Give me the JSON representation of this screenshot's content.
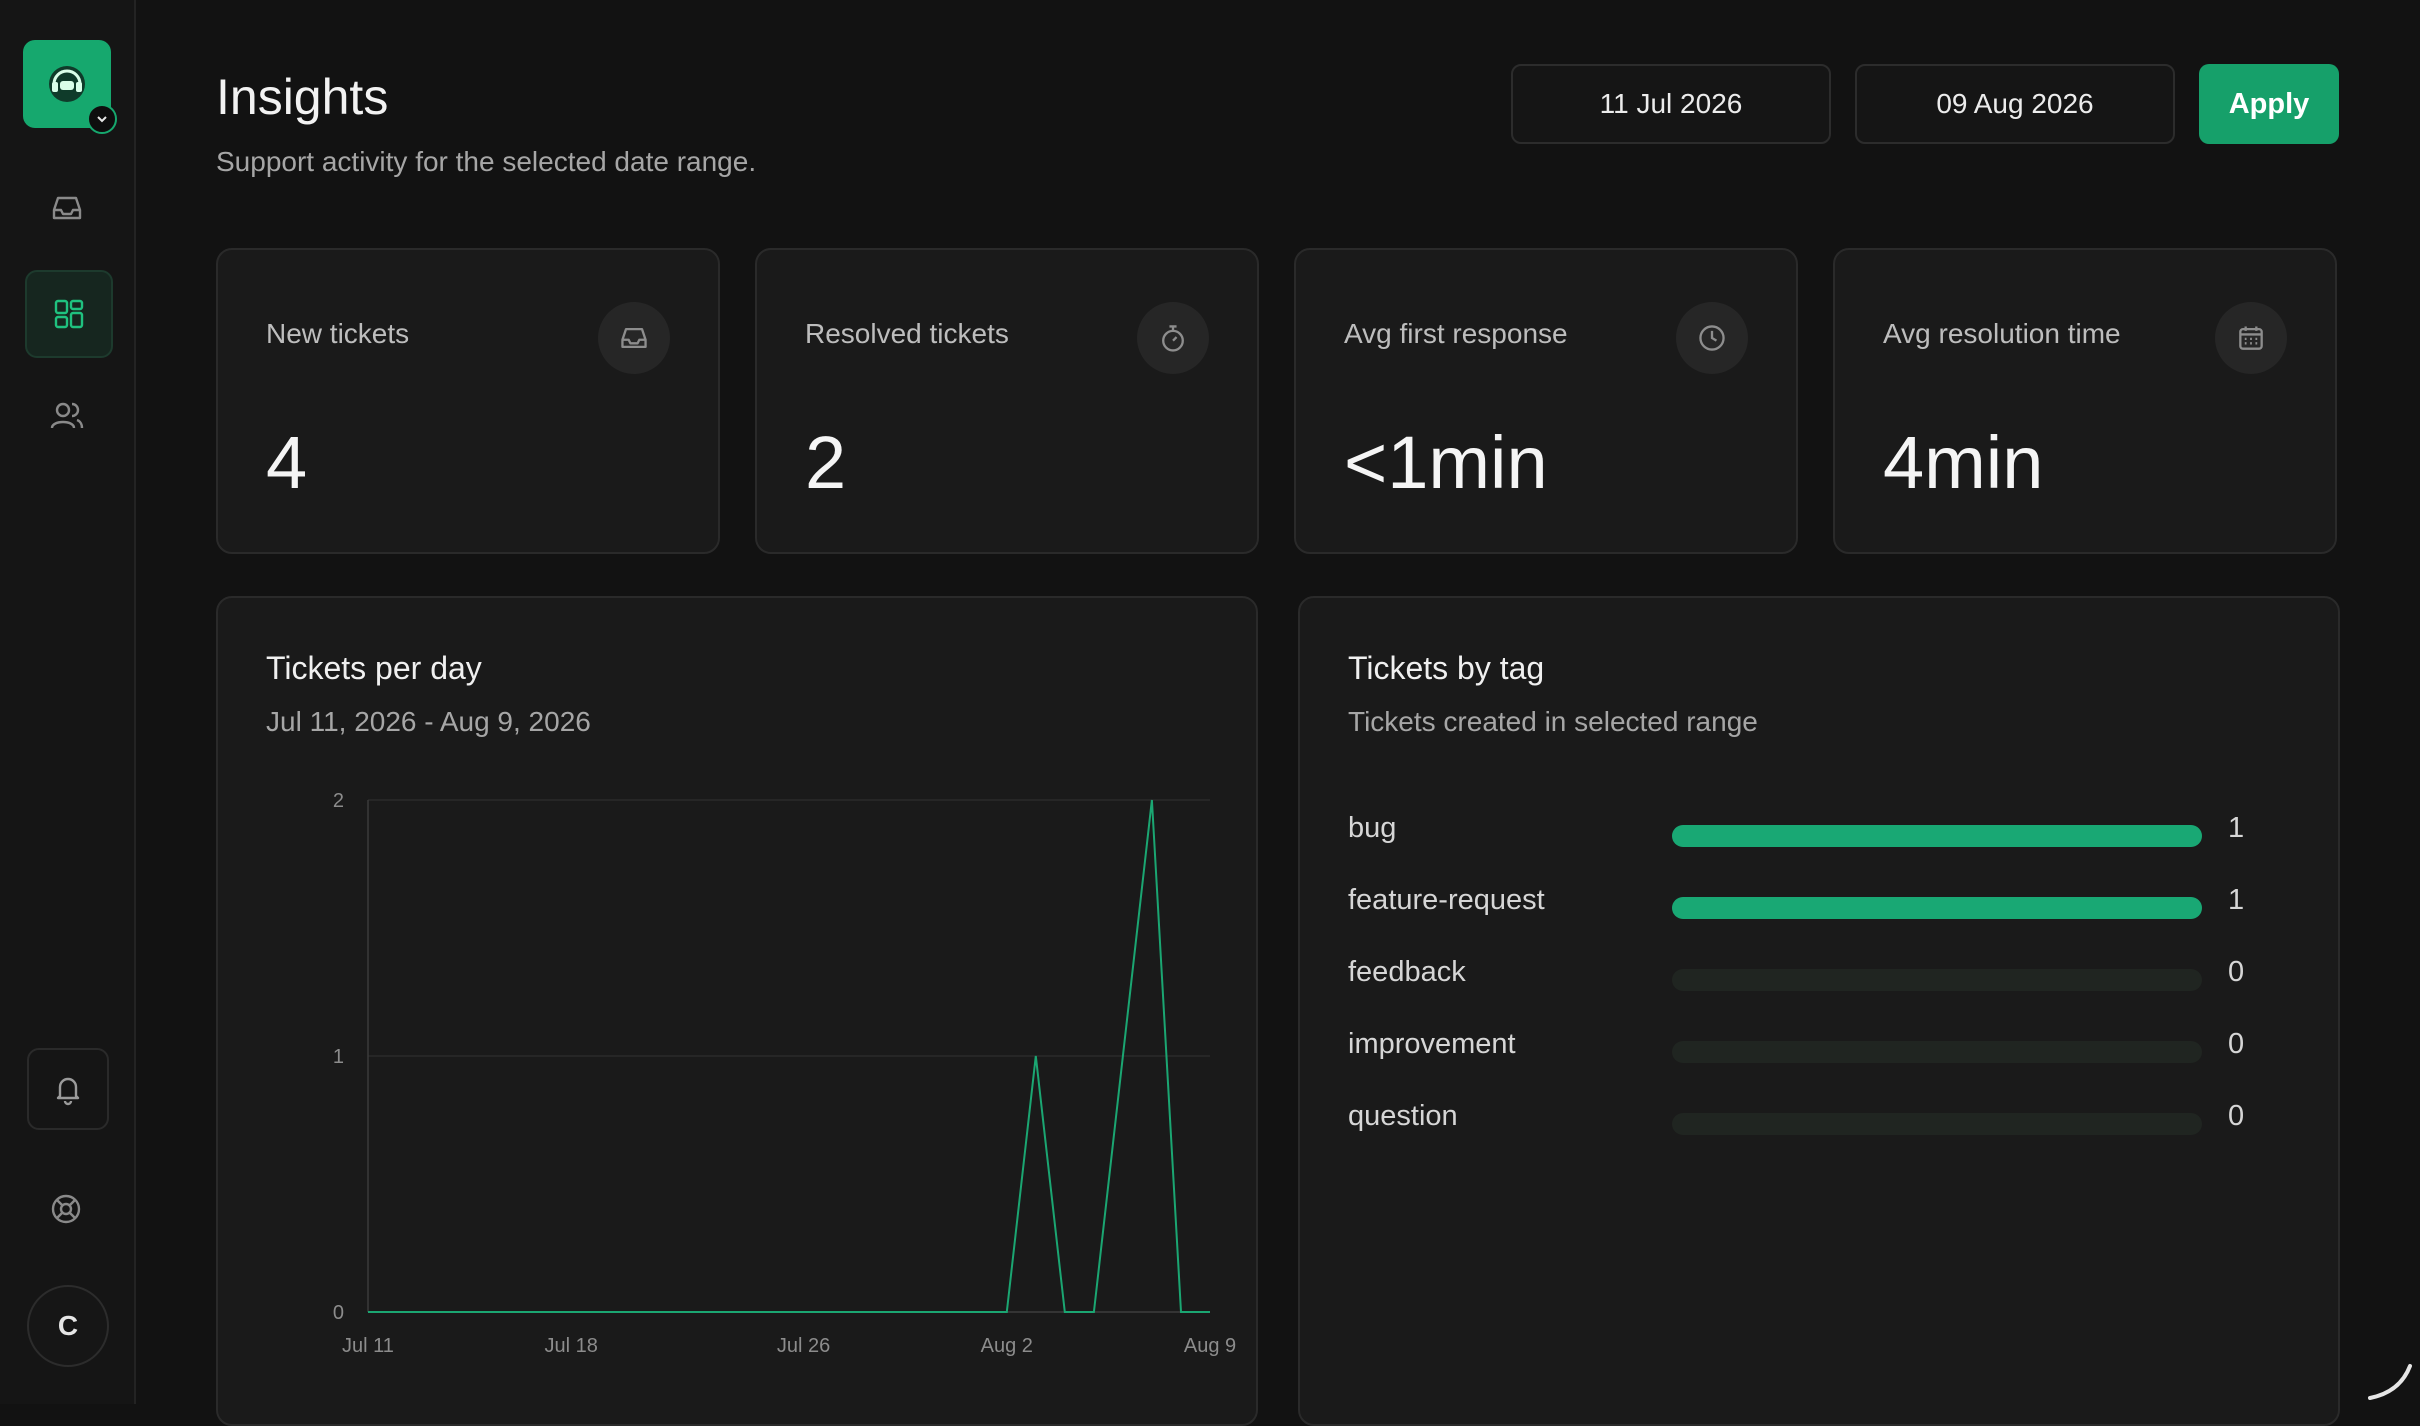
{
  "header": {
    "title": "Insights",
    "subtitle": "Support activity for the selected date range.",
    "start_date": "11 Jul 2026",
    "end_date": "09 Aug 2026",
    "apply_label": "Apply"
  },
  "sidebar": {
    "avatar_initial": "C",
    "items": [
      "inbox-icon",
      "dashboard-icon",
      "users-icon"
    ],
    "bottom": [
      "bell-icon",
      "help-icon"
    ]
  },
  "stats": [
    {
      "label": "New tickets",
      "value": "4",
      "icon": "inbox-icon"
    },
    {
      "label": "Resolved tickets",
      "value": "2",
      "icon": "timer-icon"
    },
    {
      "label": "Avg first response",
      "value": "<1min",
      "icon": "clock-icon"
    },
    {
      "label": "Avg resolution time",
      "value": "4min",
      "icon": "calendar-icon"
    }
  ],
  "tickets_per_day": {
    "title": "Tickets per day",
    "subtitle": "Jul 11, 2026 - Aug 9, 2026"
  },
  "tickets_by_tag": {
    "title": "Tickets by tag",
    "subtitle": "Tickets created in selected range",
    "rows": [
      {
        "tag": "bug",
        "count": "1",
        "fraction": 1
      },
      {
        "tag": "feature-request",
        "count": "1",
        "fraction": 1
      },
      {
        "tag": "feedback",
        "count": "0",
        "fraction": 0
      },
      {
        "tag": "improvement",
        "count": "0",
        "fraction": 0
      },
      {
        "tag": "question",
        "count": "0",
        "fraction": 0
      }
    ]
  },
  "colors": {
    "accent": "#16a86e",
    "background": "#121212",
    "card": "#1a1a1a"
  },
  "chart_data": {
    "type": "line",
    "title": "Tickets per day",
    "subtitle": "Jul 11, 2026 - Aug 9, 2026",
    "x_ticks": [
      "Jul 11",
      "Jul 18",
      "Jul 26",
      "Aug 2",
      "Aug 9"
    ],
    "y_ticks": [
      "0",
      "1",
      "2"
    ],
    "ylim": [
      0,
      2
    ],
    "xlim": [
      "2026-07-11",
      "2026-08-09"
    ],
    "grid": true,
    "series": [
      {
        "x": [
          "2026-07-11",
          "2026-07-12",
          "2026-07-13",
          "2026-07-14",
          "2026-07-15",
          "2026-07-16",
          "2026-07-17",
          "2026-07-18",
          "2026-07-19",
          "2026-07-20",
          "2026-07-21",
          "2026-07-22",
          "2026-07-23",
          "2026-07-24",
          "2026-07-25",
          "2026-07-26",
          "2026-07-27",
          "2026-07-28",
          "2026-07-29",
          "2026-07-30",
          "2026-07-31",
          "2026-08-01",
          "2026-08-02",
          "2026-08-03",
          "2026-08-04",
          "2026-08-05",
          "2026-08-06",
          "2026-08-07",
          "2026-08-08",
          "2026-08-09"
        ],
        "values": [
          0,
          0,
          0,
          0,
          0,
          0,
          0,
          0,
          0,
          0,
          0,
          0,
          0,
          0,
          0,
          0,
          0,
          0,
          0,
          0,
          0,
          0,
          0,
          1,
          0,
          0,
          1,
          2,
          0,
          0
        ]
      }
    ]
  }
}
